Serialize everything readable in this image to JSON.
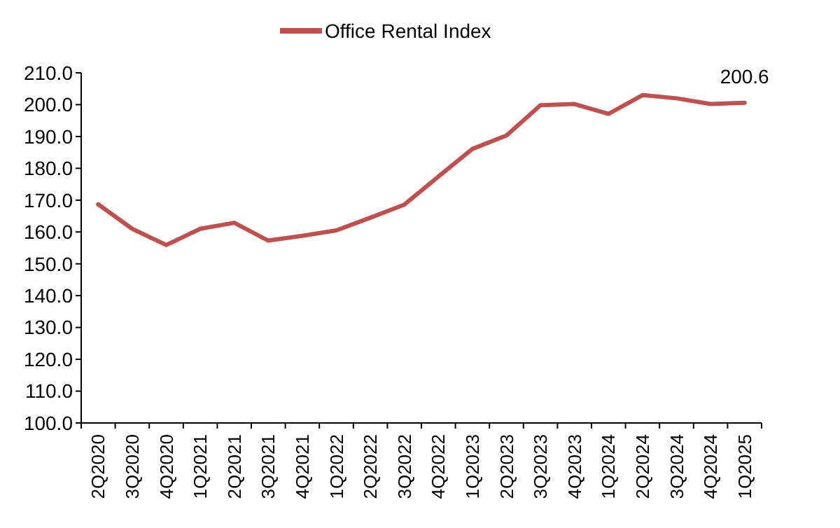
{
  "chart_data": {
    "type": "line",
    "categories": [
      "2Q2020",
      "3Q2020",
      "4Q2020",
      "1Q2021",
      "2Q2021",
      "3Q2021",
      "4Q2021",
      "1Q2022",
      "2Q2022",
      "3Q2022",
      "4Q2022",
      "1Q2023",
      "2Q2023",
      "3Q2023",
      "4Q2023",
      "1Q2024",
      "2Q2024",
      "3Q2024",
      "4Q2024",
      "1Q2025"
    ],
    "series": [
      {
        "name": "Office Rental Index",
        "color": "#c0504d",
        "values": [
          168.7,
          161.0,
          155.9,
          161.0,
          162.9,
          157.3,
          158.8,
          160.5,
          164.5,
          168.6,
          177.4,
          186.1,
          190.3,
          199.8,
          200.2,
          197.1,
          203.0,
          202.0,
          200.2,
          200.6
        ]
      }
    ],
    "ylim": [
      100,
      210
    ],
    "yticks": [
      {
        "value": 100,
        "label": "100.0"
      },
      {
        "value": 110,
        "label": "110.0"
      },
      {
        "value": 120,
        "label": "120.0"
      },
      {
        "value": 130,
        "label": "130.0"
      },
      {
        "value": 140,
        "label": "140.0"
      },
      {
        "value": 150,
        "label": "150.0"
      },
      {
        "value": 160,
        "label": "160.0"
      },
      {
        "value": 170,
        "label": "170.0"
      },
      {
        "value": 180,
        "label": "180.0"
      },
      {
        "value": 190,
        "label": "190.0"
      },
      {
        "value": 200,
        "label": "200.0"
      },
      {
        "value": 210,
        "label": "210.0"
      }
    ],
    "annotations": [
      {
        "text": "200.6",
        "x": "1Q2025",
        "y": 200.6
      }
    ],
    "legend": "top",
    "grid": false,
    "marker": "none",
    "line_style": "solid"
  }
}
